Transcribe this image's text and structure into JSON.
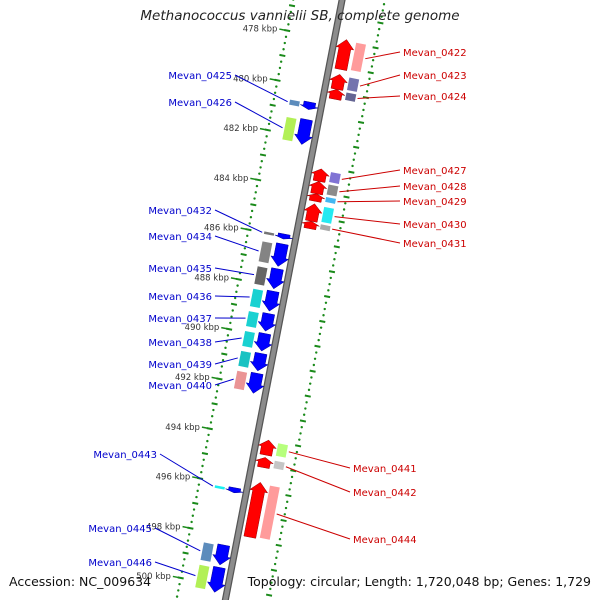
{
  "title": "Methanococcus vannielii SB, complete genome",
  "footer": {
    "accession": "Accession: NC_009634",
    "summary": "Topology: circular; Length: 1,720,048 bp; Genes: 1,729"
  },
  "scale_ticks": [
    {
      "kbp": 478,
      "label": "478 kbp"
    },
    {
      "kbp": 480,
      "label": "480 kbp"
    },
    {
      "kbp": 482,
      "label": "482 kbp"
    },
    {
      "kbp": 484,
      "label": "484 kbp"
    },
    {
      "kbp": 486,
      "label": "486 kbp"
    },
    {
      "kbp": 488,
      "label": "488 kbp"
    },
    {
      "kbp": 490,
      "label": "490 kbp"
    },
    {
      "kbp": 492,
      "label": "492 kbp"
    },
    {
      "kbp": 494,
      "label": "494 kbp"
    },
    {
      "kbp": 496,
      "label": "496 kbp"
    },
    {
      "kbp": 498,
      "label": "498 kbp"
    },
    {
      "kbp": 500,
      "label": "500 kbp"
    }
  ],
  "genes_reverse_strand": [
    {
      "label": "Mevan_0422",
      "start_kbp": 477.9,
      "end_kbp": 479.1,
      "color": "#ff0000"
    },
    {
      "label": "Mevan_0423",
      "start_kbp": 479.3,
      "end_kbp": 479.9,
      "color": "#ff0000"
    },
    {
      "label": "Mevan_0424",
      "start_kbp": 479.9,
      "end_kbp": 480.3,
      "color": "#ff0000"
    },
    {
      "label": "Mevan_0427",
      "start_kbp": 483.1,
      "end_kbp": 483.6,
      "color": "#ff0000"
    },
    {
      "label": "Mevan_0428",
      "start_kbp": 483.6,
      "end_kbp": 484.1,
      "color": "#ff0000"
    },
    {
      "label": "Mevan_0429",
      "start_kbp": 484.1,
      "end_kbp": 484.4,
      "color": "#ff0000"
    },
    {
      "label": "Mevan_0430",
      "start_kbp": 484.5,
      "end_kbp": 485.2,
      "color": "#ff0000"
    },
    {
      "label": "Mevan_0431",
      "start_kbp": 485.2,
      "end_kbp": 485.5,
      "color": "#ff0000"
    },
    {
      "label": "Mevan_0441",
      "start_kbp": 494.0,
      "end_kbp": 494.6,
      "color": "#ff0000"
    },
    {
      "label": "Mevan_0442",
      "start_kbp": 494.7,
      "end_kbp": 495.1,
      "color": "#ff0000"
    },
    {
      "label": "Mevan_0444",
      "start_kbp": 495.7,
      "end_kbp": 497.9,
      "color": "#ff0000"
    }
  ],
  "genes_forward_strand": [
    {
      "label": "Mevan_0425",
      "start_kbp": 480.6,
      "end_kbp": 480.9,
      "color": "#0000ff"
    },
    {
      "label": "Mevan_0426",
      "start_kbp": 481.3,
      "end_kbp": 482.3,
      "color": "#0000ff"
    },
    {
      "label": "Mevan_0432",
      "start_kbp": 485.9,
      "end_kbp": 486.1,
      "color": "#0000ff"
    },
    {
      "label": "Mevan_0434",
      "start_kbp": 486.3,
      "end_kbp": 487.2,
      "color": "#0000ff"
    },
    {
      "label": "Mevan_0435",
      "start_kbp": 487.3,
      "end_kbp": 488.1,
      "color": "#0000ff"
    },
    {
      "label": "Mevan_0436",
      "start_kbp": 488.2,
      "end_kbp": 489.0,
      "color": "#0000ff"
    },
    {
      "label": "Mevan_0437",
      "start_kbp": 489.1,
      "end_kbp": 489.8,
      "color": "#0000ff"
    },
    {
      "label": "Mevan_0438",
      "start_kbp": 489.9,
      "end_kbp": 490.6,
      "color": "#0000ff"
    },
    {
      "label": "Mevan_0439",
      "start_kbp": 490.7,
      "end_kbp": 491.4,
      "color": "#0000ff"
    },
    {
      "label": "Mevan_0440",
      "start_kbp": 491.5,
      "end_kbp": 492.3,
      "color": "#0000ff"
    },
    {
      "label": "Mevan_0443",
      "start_kbp": 496.1,
      "end_kbp": 496.3,
      "color": "#0000ff"
    },
    {
      "label": "Mevan_0445",
      "start_kbp": 498.4,
      "end_kbp": 499.2,
      "color": "#0000ff"
    },
    {
      "label": "Mevan_0446",
      "start_kbp": 499.3,
      "end_kbp": 500.3,
      "color": "#0000ff"
    }
  ],
  "colors": {
    "backbone": "#8c8c8c",
    "tick_dots": "#1a8a1a",
    "forward_label": "#0000cc",
    "reverse_label": "#cc0000"
  }
}
